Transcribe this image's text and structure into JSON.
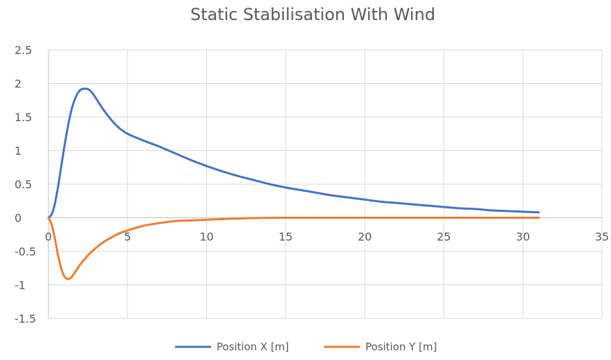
{
  "chart_data": {
    "type": "scatter",
    "title": "Static Stabilisation With Wind",
    "xlabel": "",
    "ylabel": "",
    "xlim": [
      0,
      35
    ],
    "ylim": [
      -1.5,
      2.5
    ],
    "x_ticks": [
      0,
      5,
      10,
      15,
      20,
      25,
      30,
      35
    ],
    "y_ticks": [
      -1.5,
      -1,
      -0.5,
      0,
      0.5,
      1,
      1.5,
      2,
      2.5
    ],
    "x_tick_labels": [
      "0",
      "5",
      "10",
      "15",
      "20",
      "25",
      "30",
      "35"
    ],
    "y_tick_labels": [
      "-1.5",
      "-1",
      "-0.5",
      "0",
      "0.5",
      "1",
      "1.5",
      "2",
      "2.5"
    ],
    "grid": true,
    "legend_position": "bottom",
    "series": [
      {
        "name": "Position X [m]",
        "color": "#4472c4",
        "x": [
          0,
          0.2,
          0.4,
          0.6,
          0.8,
          1.0,
          1.2,
          1.4,
          1.6,
          1.8,
          2.0,
          2.2,
          2.4,
          2.6,
          2.8,
          3.0,
          3.5,
          4.0,
          4.5,
          5.0,
          6.0,
          7.0,
          8.0,
          9.0,
          10.0,
          11.0,
          12.0,
          13.0,
          14.0,
          15.0,
          16.0,
          17.0,
          18.0,
          19.0,
          20.0,
          21.0,
          22.0,
          23.0,
          24.0,
          25.0,
          26.0,
          27.0,
          28.0,
          29.0,
          30.0,
          31.0
        ],
        "y": [
          0,
          0.05,
          0.2,
          0.45,
          0.75,
          1.05,
          1.32,
          1.55,
          1.72,
          1.83,
          1.9,
          1.92,
          1.92,
          1.9,
          1.85,
          1.78,
          1.6,
          1.45,
          1.33,
          1.25,
          1.15,
          1.06,
          0.96,
          0.86,
          0.77,
          0.69,
          0.62,
          0.56,
          0.5,
          0.45,
          0.41,
          0.37,
          0.33,
          0.3,
          0.27,
          0.24,
          0.22,
          0.2,
          0.18,
          0.16,
          0.14,
          0.13,
          0.11,
          0.1,
          0.09,
          0.08
        ]
      },
      {
        "name": "Position Y [m]",
        "color": "#ed7d31",
        "x": [
          0,
          0.2,
          0.4,
          0.6,
          0.8,
          1.0,
          1.2,
          1.4,
          1.6,
          1.8,
          2.0,
          2.5,
          3.0,
          3.5,
          4.0,
          4.5,
          5.0,
          6.0,
          7.0,
          8.0,
          9.0,
          10.0,
          11.0,
          12.0,
          13.0,
          15.0,
          20.0,
          25.0,
          31.0
        ],
        "y": [
          0,
          -0.1,
          -0.3,
          -0.55,
          -0.75,
          -0.87,
          -0.91,
          -0.9,
          -0.84,
          -0.77,
          -0.7,
          -0.56,
          -0.45,
          -0.36,
          -0.29,
          -0.23,
          -0.19,
          -0.12,
          -0.08,
          -0.05,
          -0.04,
          -0.03,
          -0.02,
          -0.01,
          -0.005,
          0,
          0,
          0,
          0
        ]
      }
    ]
  }
}
